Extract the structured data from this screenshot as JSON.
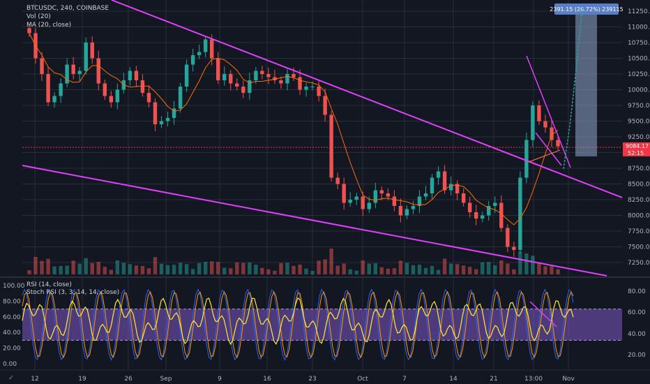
{
  "header": {
    "symbol": "BTCUSDC, 240, COINBASE",
    "ind1": "Vol (20)",
    "ind2": "MA (20, close)"
  },
  "lower": {
    "rsi": "RSI (14, close)",
    "stoch": "Stoch RSI (3, 3, 14, 14, close)"
  },
  "price_axis": {
    "ticks": [
      "11250.00",
      "11000.00",
      "10750.00",
      "10500.00",
      "10250.00",
      "10000.00",
      "9750.00",
      "9500.00",
      "9250.00",
      "9000.00",
      "8750.00",
      "8500.00",
      "8250.00",
      "8000.00",
      "7750.00",
      "7500.00",
      "7250.00"
    ],
    "current_price": "9084.17",
    "countdown": "52:15",
    "current_color": "#f23645"
  },
  "projection": {
    "label": "2391.15 (26.72%) 239115"
  },
  "left_axis": {
    "ticks": [
      "100.00",
      "80.00",
      "60.00",
      "40.00",
      "20.00",
      "0.00"
    ]
  },
  "right_osc_axis": {
    "ticks": [
      "80.00",
      "60.00",
      "40.00",
      "20.00"
    ]
  },
  "time_axis": {
    "ticks": [
      "12",
      "19",
      "26",
      "Sep",
      "9",
      "16",
      "23",
      "Oct",
      "7",
      "14",
      "21",
      "13:00",
      "Nov"
    ]
  },
  "chart_data": {
    "type": "candlestick",
    "symbol": "BTCUSDC",
    "interval": "240",
    "exchange": "COINBASE",
    "ylim": [
      7050,
      11400
    ],
    "close_series": [
      10900,
      10500,
      10250,
      9800,
      9900,
      10100,
      10400,
      10250,
      10300,
      10750,
      10500,
      10100,
      9900,
      9800,
      10000,
      10150,
      10300,
      10150,
      9950,
      9800,
      9450,
      9500,
      9550,
      9700,
      10050,
      10400,
      10550,
      10600,
      10800,
      10500,
      10150,
      10250,
      10100,
      10050,
      9950,
      10150,
      10300,
      10250,
      10200,
      10150,
      10100,
      10250,
      10200,
      10000,
      10050,
      10050,
      9900,
      9600,
      8600,
      8500,
      8200,
      8250,
      8300,
      8100,
      8200,
      8400,
      8350,
      8300,
      8150,
      8000,
      8100,
      8150,
      8300,
      8350,
      8600,
      8700,
      8400,
      8500,
      8350,
      8200,
      8050,
      7950,
      8000,
      8150,
      8200,
      7800,
      7500,
      7450,
      8600,
      9200,
      9750,
      9500,
      9400,
      9200,
      9100
    ],
    "ma_color": "#ff6d00",
    "trendlines_color": "#e040fb"
  },
  "colors": {
    "up": "#26a69a",
    "down": "#ef5350",
    "grid": "#2a2e39",
    "osc_band": "#7e57c2",
    "rsi": "#ffeb3b",
    "stoch_k": "#2962ff",
    "stoch_d": "#ff9800"
  }
}
